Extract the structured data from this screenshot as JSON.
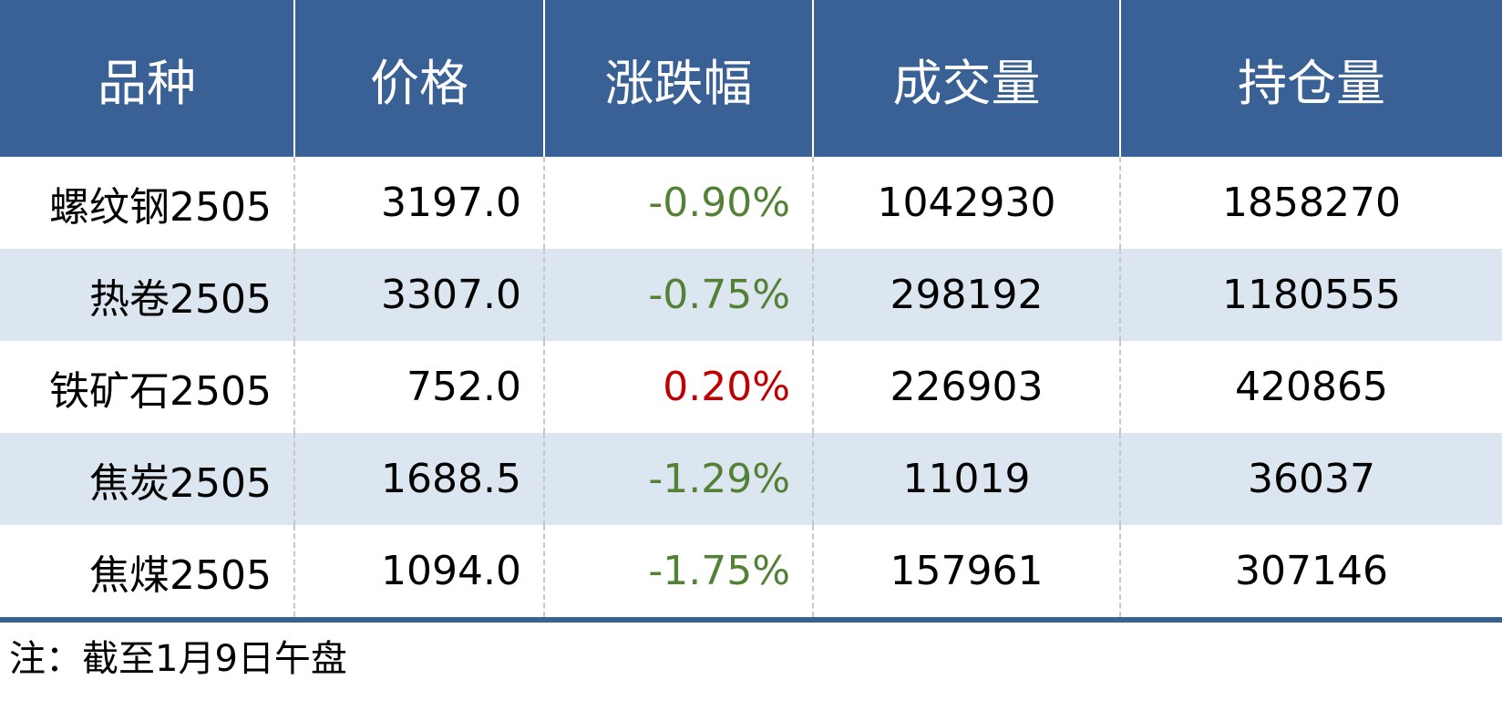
{
  "chart_data": {
    "type": "table",
    "columns": [
      "品种",
      "价格",
      "涨跌幅",
      "成交量",
      "持仓量"
    ],
    "rows": [
      {
        "name": "螺纹钢2505",
        "price": "3197.0",
        "change": "-0.90%",
        "volume": "1042930",
        "open_interest": "1858270"
      },
      {
        "name": "热卷2505",
        "price": "3307.0",
        "change": "-0.75%",
        "volume": "298192",
        "open_interest": "1180555"
      },
      {
        "name": "铁矿石2505",
        "price": "752.0",
        "change": "0.20%",
        "volume": "226903",
        "open_interest": "420865"
      },
      {
        "name": "焦炭2505",
        "price": "1688.5",
        "change": "-1.29%",
        "volume": "11019",
        "open_interest": "36037"
      },
      {
        "name": "焦煤2505",
        "price": "1094.0",
        "change": "-1.75%",
        "volume": "157961",
        "open_interest": "307146"
      }
    ],
    "note": "注：截至1月9日午盘"
  },
  "colors": {
    "header": "#3a6195",
    "stripe": "#dce6f0",
    "down": "#538135",
    "up": "#c00000"
  }
}
